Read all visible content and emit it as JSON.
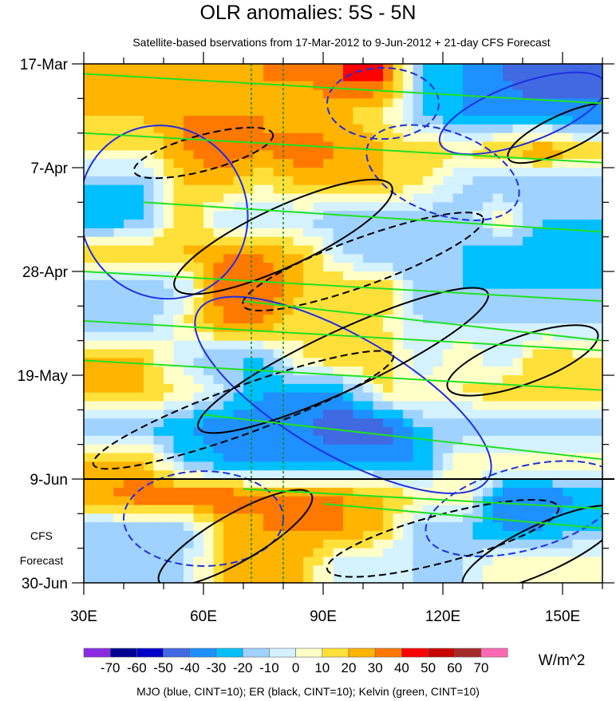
{
  "chart_data": {
    "type": "heatmap",
    "title": "OLR anomalies: 5S - 5N",
    "subtitle": "Satellite-based bservations from 17-Mar-2012 to 9-Jun-2012 + 21-day CFS Forecast",
    "xlim": [
      30,
      160
    ],
    "x_ticks": [
      {
        "v": 30,
        "label": "30E"
      },
      {
        "v": 60,
        "label": "60E"
      },
      {
        "v": 90,
        "label": "90E"
      },
      {
        "v": 120,
        "label": "120E"
      },
      {
        "v": 150,
        "label": "150E"
      }
    ],
    "y_range_days": [
      0,
      105
    ],
    "y_ticks": [
      {
        "d": 0,
        "label": "17-Mar"
      },
      {
        "d": 21,
        "label": "7-Apr"
      },
      {
        "d": 42,
        "label": "28-Apr"
      },
      {
        "d": 63,
        "label": "19-May"
      },
      {
        "d": 84,
        "label": "9-Jun"
      },
      {
        "d": 105,
        "label": "30-Jun"
      }
    ],
    "forecast_start_day": 84,
    "forecast_label": [
      "CFS",
      "Forecast"
    ],
    "reference_lons": [
      72,
      80
    ],
    "grid_lons": [
      35,
      45,
      55,
      65,
      75,
      85,
      95,
      105,
      115,
      125,
      135,
      145,
      155
    ],
    "grid_days": [
      3.5,
      10.5,
      17.5,
      24.5,
      31.5,
      38.5,
      45.5,
      52.5,
      59.5,
      66.5,
      73.5,
      80.5,
      87.5,
      94.5,
      101.5
    ],
    "values": [
      [
        20,
        25,
        30,
        25,
        30,
        30,
        40,
        40,
        -20,
        -30,
        -40,
        -50,
        -40
      ],
      [
        20,
        20,
        30,
        30,
        30,
        20,
        20,
        10,
        -20,
        -30,
        -30,
        -30,
        -40
      ],
      [
        10,
        10,
        30,
        40,
        30,
        40,
        30,
        20,
        20,
        10,
        20,
        30,
        20
      ],
      [
        -20,
        -20,
        20,
        20,
        10,
        20,
        20,
        20,
        10,
        -10,
        -20,
        -20,
        -20
      ],
      [
        -30,
        -20,
        20,
        -10,
        -10,
        -10,
        -20,
        -20,
        -20,
        -20,
        10,
        -20,
        -20
      ],
      [
        20,
        20,
        20,
        30,
        30,
        20,
        -10,
        -20,
        -20,
        -20,
        -30,
        -30,
        -30
      ],
      [
        -20,
        -20,
        -10,
        40,
        40,
        20,
        20,
        20,
        -20,
        -20,
        -20,
        -20,
        -20
      ],
      [
        -20,
        -20,
        10,
        30,
        30,
        10,
        10,
        10,
        -10,
        -10,
        -10,
        -10,
        -10
      ],
      [
        20,
        20,
        -10,
        -20,
        -20,
        10,
        20,
        20,
        -10,
        10,
        -10,
        20,
        10
      ],
      [
        20,
        20,
        10,
        -10,
        -30,
        -30,
        -30,
        10,
        10,
        10,
        20,
        20,
        20
      ],
      [
        -20,
        -20,
        -30,
        -40,
        -40,
        -40,
        -50,
        -50,
        -20,
        -20,
        -20,
        -20,
        -20
      ],
      [
        20,
        20,
        -20,
        -30,
        -30,
        -30,
        -30,
        -30,
        -30,
        10,
        10,
        10,
        10
      ],
      [
        30,
        40,
        40,
        40,
        30,
        30,
        30,
        20,
        10,
        10,
        -40,
        -40,
        -30
      ],
      [
        -20,
        -20,
        -20,
        20,
        30,
        30,
        30,
        20,
        -20,
        -20,
        -30,
        -30,
        -20
      ],
      [
        -20,
        -20,
        -10,
        20,
        20,
        20,
        -10,
        -10,
        -10,
        -10,
        10,
        10,
        10
      ]
    ],
    "levels": [
      -70,
      -60,
      -50,
      -40,
      -30,
      -20,
      -10,
      0,
      10,
      20,
      30,
      40,
      50,
      60,
      70
    ],
    "colors": [
      "#8a2be2",
      "#000090",
      "#0000c8",
      "#4169e1",
      "#1e90ff",
      "#00bfff",
      "#a0d2ff",
      "#d4f2ff",
      "#ffffc8",
      "#ffe03a",
      "#ffb400",
      "#ff7800",
      "#ff0000",
      "#c80000",
      "#a52a2a",
      "#ff69b4"
    ],
    "units": "W/m^2",
    "colorbar_labels": [
      "-70",
      "-60",
      "-50",
      "-40",
      "-30",
      "-20",
      "-10",
      "0",
      "10",
      "20",
      "30",
      "40",
      "50",
      "60",
      "70"
    ],
    "legend_text": "MJO (blue, CINT=10); ER (black, CINT=10); Kelvin (green, CINT=10)",
    "mjo_ellipses": [
      {
        "lon": 50,
        "day": 30,
        "rlon": 22,
        "rday": 14,
        "angle": 60,
        "dashed": false
      },
      {
        "lon": 105,
        "day": 8,
        "rlon": 14,
        "rday": 6,
        "angle": 0,
        "dashed": true
      },
      {
        "lon": 95,
        "day": 67,
        "rlon": 42,
        "rday": 10,
        "angle": 30,
        "dashed": false
      },
      {
        "lon": 120,
        "day": 22,
        "rlon": 20,
        "rday": 7,
        "angle": 20,
        "dashed": true
      },
      {
        "lon": 140,
        "day": 10,
        "rlon": 22,
        "rday": 5,
        "angle": -20,
        "dashed": false
      },
      {
        "lon": 60,
        "day": 92,
        "rlon": 20,
        "rday": 8,
        "angle": 0,
        "dashed": true
      },
      {
        "lon": 140,
        "day": 90,
        "rlon": 25,
        "rday": 7,
        "angle": -15,
        "dashed": true
      }
    ],
    "er_ellipses": [
      {
        "lon": 80,
        "day": 35,
        "rlon": 30,
        "rday": 5,
        "angle": -25,
        "dashed": false
      },
      {
        "lon": 100,
        "day": 40,
        "rlon": 32,
        "rday": 4,
        "angle": -20,
        "dashed": true
      },
      {
        "lon": 95,
        "day": 60,
        "rlon": 40,
        "rday": 5,
        "angle": -25,
        "dashed": false
      },
      {
        "lon": 70,
        "day": 70,
        "rlon": 40,
        "rday": 4,
        "angle": -20,
        "dashed": true
      },
      {
        "lon": 140,
        "day": 60,
        "rlon": 20,
        "rday": 4,
        "angle": -20,
        "dashed": false
      },
      {
        "lon": 68,
        "day": 96,
        "rlon": 22,
        "rday": 4,
        "angle": -30,
        "dashed": false
      },
      {
        "lon": 120,
        "day": 96,
        "rlon": 30,
        "rday": 4,
        "angle": -15,
        "dashed": true
      },
      {
        "lon": 145,
        "day": 98,
        "rlon": 22,
        "rday": 4,
        "angle": -25,
        "dashed": false
      },
      {
        "lon": 60,
        "day": 18,
        "rlon": 18,
        "rday": 3,
        "angle": -15,
        "dashed": true
      },
      {
        "lon": 150,
        "day": 14,
        "rlon": 15,
        "rday": 3,
        "angle": -25,
        "dashed": false
      }
    ],
    "kelvin_lines": [
      {
        "lon0": 30,
        "day0": 2,
        "lon1": 160,
        "day1": 8
      },
      {
        "lon0": 30,
        "day0": 14,
        "lon1": 160,
        "day1": 20
      },
      {
        "lon0": 30,
        "day0": 52,
        "lon1": 160,
        "day1": 58
      },
      {
        "lon0": 30,
        "day0": 60,
        "lon1": 160,
        "day1": 66
      },
      {
        "lon0": 60,
        "day0": 71,
        "lon1": 160,
        "day1": 80
      },
      {
        "lon0": 70,
        "day0": 48,
        "lon1": 160,
        "day1": 56
      },
      {
        "lon0": 30,
        "day0": 42,
        "lon1": 160,
        "day1": 48
      },
      {
        "lon0": 70,
        "day0": 86,
        "lon1": 160,
        "day1": 90
      },
      {
        "lon0": 90,
        "day0": 89,
        "lon1": 160,
        "day1": 94
      },
      {
        "lon0": 45,
        "day0": 28,
        "lon1": 160,
        "day1": 34
      }
    ]
  }
}
